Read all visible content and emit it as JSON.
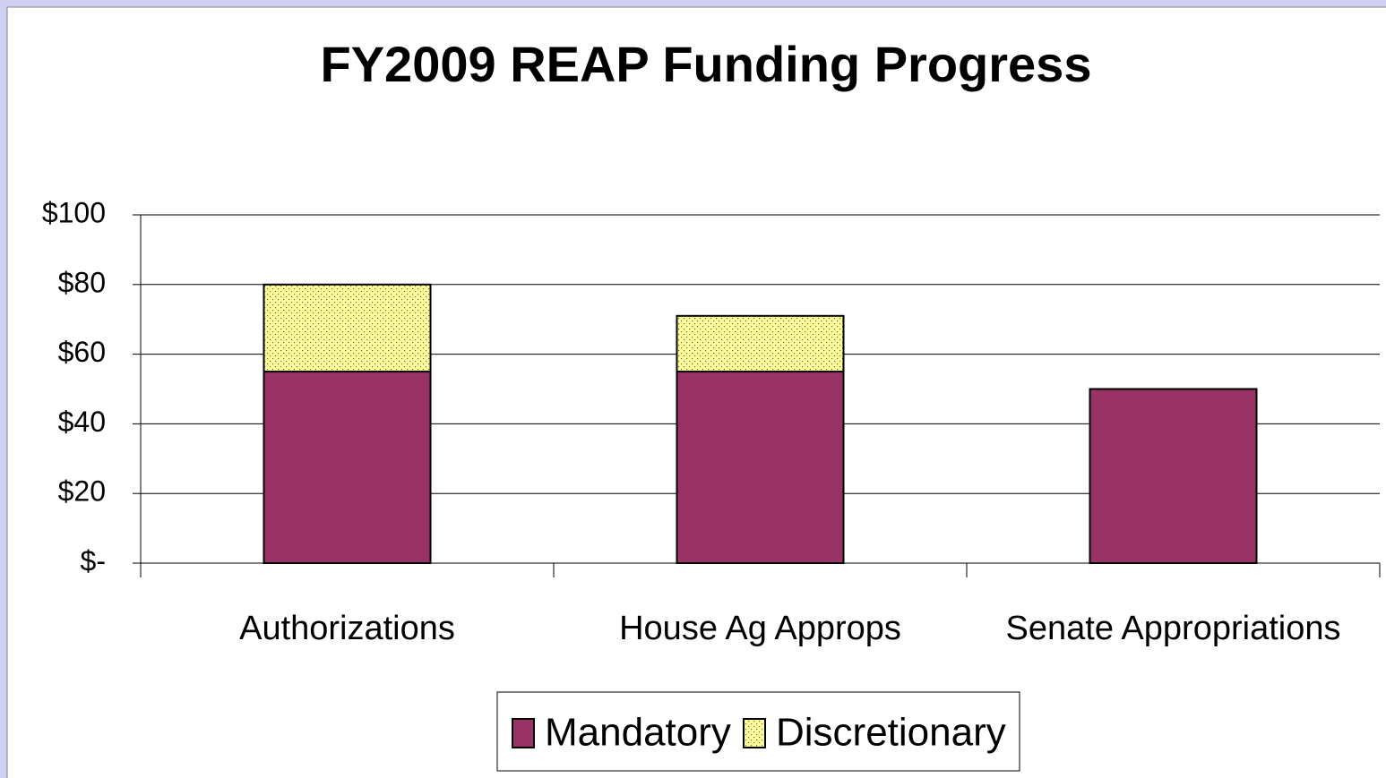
{
  "chart_data": {
    "type": "stacked_bar",
    "title": "FY2009 REAP Funding Progress",
    "categories": [
      "Authorizations",
      "House Ag Approps",
      "Senate Appropriations"
    ],
    "series": [
      {
        "name": "Mandatory",
        "color": "#993366",
        "values": [
          55,
          55,
          50
        ]
      },
      {
        "name": "Discretionary",
        "color": "#ffff99",
        "values": [
          25,
          16,
          null
        ]
      }
    ],
    "ylim": [
      0,
      100
    ],
    "yticks": [
      {
        "value": 0,
        "label": "$-"
      },
      {
        "value": 20,
        "label": "$20"
      },
      {
        "value": 40,
        "label": "$40"
      },
      {
        "value": 60,
        "label": "$60"
      },
      {
        "value": 80,
        "label": "$80"
      },
      {
        "value": 100,
        "label": "$100"
      }
    ],
    "grid": true,
    "legend": "bottom"
  }
}
